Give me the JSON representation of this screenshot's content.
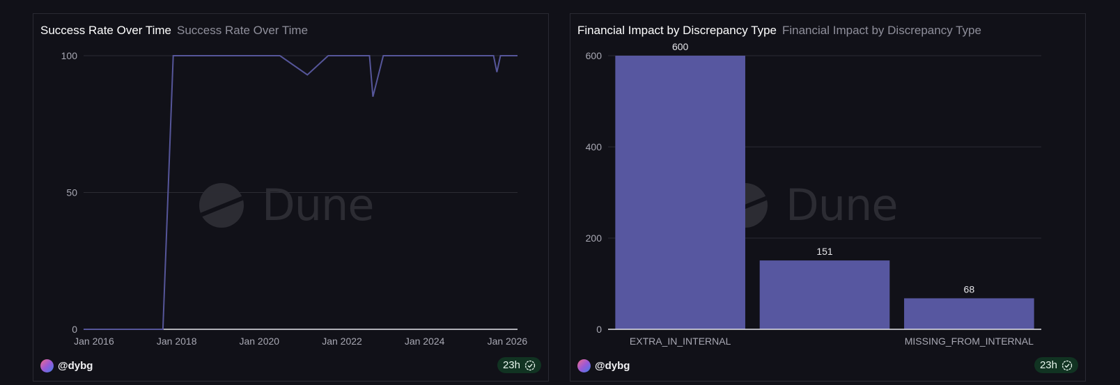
{
  "charts": [
    {
      "title": "Success Rate Over Time",
      "subtitle": "Success Rate Over Time",
      "user": "@dybg",
      "badge": "23h",
      "watermark": "Dune"
    },
    {
      "title": "Financial Impact by Discrepancy Type",
      "subtitle": "Financial Impact by Discrepancy Type",
      "user": "@dybg",
      "badge": "23h",
      "watermark": "Dune"
    }
  ],
  "colors": {
    "series": "#5757a0",
    "line": "#56569a",
    "grid": "#2c2c34",
    "baseline": "#e8e8ee"
  },
  "chart_data": [
    {
      "type": "line",
      "title": "Success Rate Over Time",
      "ylim": [
        0,
        100
      ],
      "yticks": [
        0,
        50,
        100
      ],
      "xlim": [
        "2015-10-01",
        "2026-04-01"
      ],
      "xticks": [
        {
          "date": "2016-01-01",
          "label": "Jan 2016"
        },
        {
          "date": "2018-01-01",
          "label": "Jan 2018"
        },
        {
          "date": "2020-01-01",
          "label": "Jan 2020"
        },
        {
          "date": "2022-01-01",
          "label": "Jan 2022"
        },
        {
          "date": "2024-01-01",
          "label": "Jan 2024"
        },
        {
          "date": "2026-01-01",
          "label": "Jan 2026"
        }
      ],
      "series": [
        {
          "x": [
            "2015-10-01",
            "2017-09-01",
            "2017-12-01",
            "2020-07-01",
            "2021-03-01",
            "2021-09-01",
            "2022-09-01",
            "2022-10-01",
            "2023-01-01",
            "2025-09-01",
            "2025-10-01",
            "2025-11-01",
            "2026-04-01"
          ],
          "y": [
            0,
            0,
            100,
            100,
            93,
            100,
            100,
            85,
            100,
            100,
            94,
            100,
            100
          ]
        }
      ],
      "grid": true
    },
    {
      "type": "bar",
      "title": "Financial Impact by Discrepancy Type",
      "categories": [
        "EXTRA_IN_INTERNAL",
        "",
        "MISSING_FROM_INTERNAL"
      ],
      "values": [
        600,
        151,
        68
      ],
      "data_labels": [
        "600",
        "151",
        "68"
      ],
      "ylim": [
        0,
        600
      ],
      "yticks": [
        0,
        200,
        400,
        600
      ],
      "grid": true
    }
  ]
}
